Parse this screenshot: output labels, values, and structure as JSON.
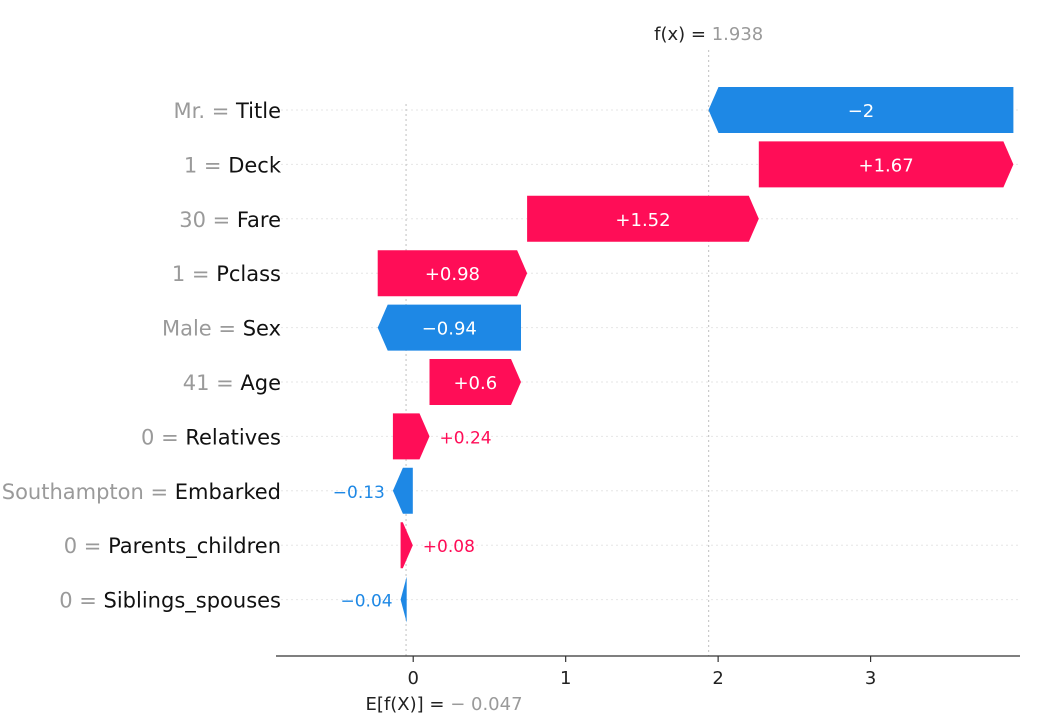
{
  "chart_data": {
    "type": "waterfall",
    "base_value": -0.047,
    "base_value_label": "− 0.047",
    "base_label": "E[f(X)] =",
    "output_value": 1.938,
    "output_value_label": "1.938",
    "output_label": "f(x) =",
    "xlim": [
      -0.9,
      3.98
    ],
    "xticks": [
      0,
      1,
      2,
      3
    ],
    "xtick_labels": [
      "0",
      "1",
      "2",
      "3"
    ],
    "grid": "horizontal-dotted",
    "colors": {
      "positive": "#ff0d57",
      "negative": "#1e88e5"
    },
    "features": [
      {
        "name": "Title",
        "value": "Mr.",
        "contribution": -2.0,
        "label": "−2",
        "start": 3.937,
        "end": 1.937
      },
      {
        "name": "Deck",
        "value": "1",
        "contribution": 1.67,
        "label": "+1.67",
        "start": 2.267,
        "end": 3.937
      },
      {
        "name": "Fare",
        "value": "30",
        "contribution": 1.52,
        "label": "+1.52",
        "start": 0.747,
        "end": 2.267
      },
      {
        "name": "Pclass",
        "value": "1",
        "contribution": 0.98,
        "label": "+0.98",
        "start": -0.233,
        "end": 0.747
      },
      {
        "name": "Sex",
        "value": "Male",
        "contribution": -0.94,
        "label": "−0.94",
        "start": 0.707,
        "end": -0.233
      },
      {
        "name": "Age",
        "value": "41",
        "contribution": 0.6,
        "label": "+0.6",
        "start": 0.107,
        "end": 0.707
      },
      {
        "name": "Relatives",
        "value": "0",
        "contribution": 0.24,
        "label": "+0.24",
        "start": -0.133,
        "end": 0.107
      },
      {
        "name": "Embarked",
        "value": "Southampton",
        "contribution": -0.13,
        "label": "−0.13",
        "start": -0.003,
        "end": -0.133
      },
      {
        "name": "Parents_children",
        "value": "0",
        "contribution": 0.08,
        "label": "+0.08",
        "start": -0.083,
        "end": -0.003
      },
      {
        "name": "Siblings_spouses",
        "value": "0",
        "contribution": -0.04,
        "label": "−0.04",
        "start": -0.043,
        "end": -0.083
      }
    ]
  }
}
